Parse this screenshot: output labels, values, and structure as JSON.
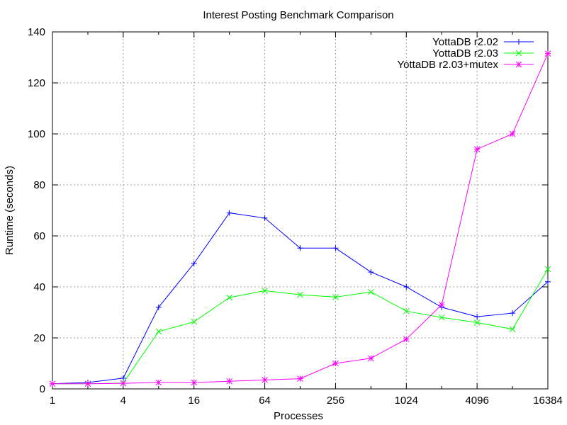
{
  "chart_data": {
    "type": "line",
    "title": "Interest Posting Benchmark Comparison",
    "xlabel": "Processes",
    "ylabel": "Runtime (seconds)",
    "x_scale": "log2",
    "xlim": [
      1,
      16384
    ],
    "ylim": [
      0,
      140
    ],
    "x_ticks": [
      1,
      4,
      16,
      64,
      256,
      1024,
      4096,
      16384
    ],
    "x_tick_labels": [
      "1",
      "4",
      "16",
      "64",
      "256",
      "1024",
      "4096",
      "16384"
    ],
    "y_ticks": [
      0,
      20,
      40,
      60,
      80,
      100,
      120,
      140
    ],
    "y_tick_labels": [
      "0",
      "20",
      "40",
      "60",
      "80",
      "100",
      "120",
      "140"
    ],
    "grid": true,
    "legend_position": "top-right",
    "x": [
      1,
      2,
      4,
      8,
      16,
      32,
      64,
      128,
      256,
      512,
      1024,
      2048,
      4096,
      8192,
      16384
    ],
    "series": [
      {
        "name": "YottaDB r2.02",
        "color": "#0000ff",
        "marker": "plus",
        "values": [
          2.0,
          2.5,
          4.2,
          32.0,
          49.2,
          69.0,
          67.0,
          55.2,
          55.2,
          45.8,
          40.0,
          32.0,
          28.3,
          29.7,
          42.0
        ]
      },
      {
        "name": "YottaDB r2.03",
        "color": "#00ff00",
        "marker": "x",
        "values": [
          2.0,
          2.0,
          2.3,
          22.5,
          26.3,
          35.8,
          38.5,
          36.9,
          36.0,
          38.0,
          30.5,
          28.0,
          26.0,
          23.4,
          47.0
        ]
      },
      {
        "name": "YottaDB r2.03+mutex",
        "color": "#ff00ff",
        "marker": "star",
        "values": [
          2.0,
          2.0,
          2.2,
          2.5,
          2.5,
          3.0,
          3.5,
          4.0,
          10.0,
          12.0,
          19.5,
          33.0,
          94.0,
          100.0,
          131.5
        ]
      }
    ]
  }
}
